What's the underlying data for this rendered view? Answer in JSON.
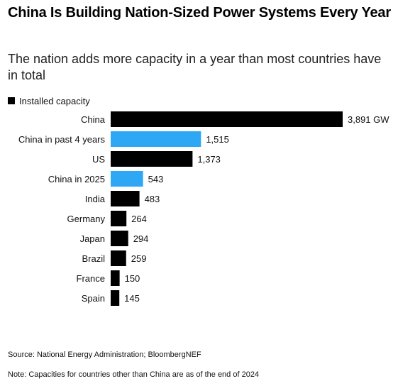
{
  "header": {
    "title": "China Is Building Nation-Sized Power Systems Every Year",
    "subtitle": "The nation adds more capacity in a year than most countries have in total"
  },
  "legend": {
    "label": "Installed capacity",
    "color": "#000000"
  },
  "chart_data": {
    "type": "bar",
    "orientation": "horizontal",
    "categories": [
      "China",
      "China in past 4 years",
      "US",
      "China in 2025",
      "India",
      "Germany",
      "Japan",
      "Brazil",
      "France",
      "Spain"
    ],
    "values": [
      3891,
      1515,
      1373,
      543,
      483,
      264,
      294,
      259,
      150,
      145
    ],
    "value_labels": [
      "3,891 GW",
      "1,515",
      "1,373",
      "543",
      "483",
      "264",
      "294",
      "259",
      "150",
      "145"
    ],
    "colors": [
      "#000000",
      "#2ea8f5",
      "#000000",
      "#2ea8f5",
      "#000000",
      "#000000",
      "#000000",
      "#000000",
      "#000000",
      "#000000"
    ],
    "title": "China Is Building Nation-Sized Power Systems Every Year",
    "xlabel": "",
    "ylabel": "",
    "unit": "GW",
    "grid": false,
    "legend_position": "top-left"
  },
  "footer": {
    "source": "Source: National Energy Administration; BloombergNEF",
    "note": "Note: Capacities for countries other than China are as of the end of 2024"
  }
}
